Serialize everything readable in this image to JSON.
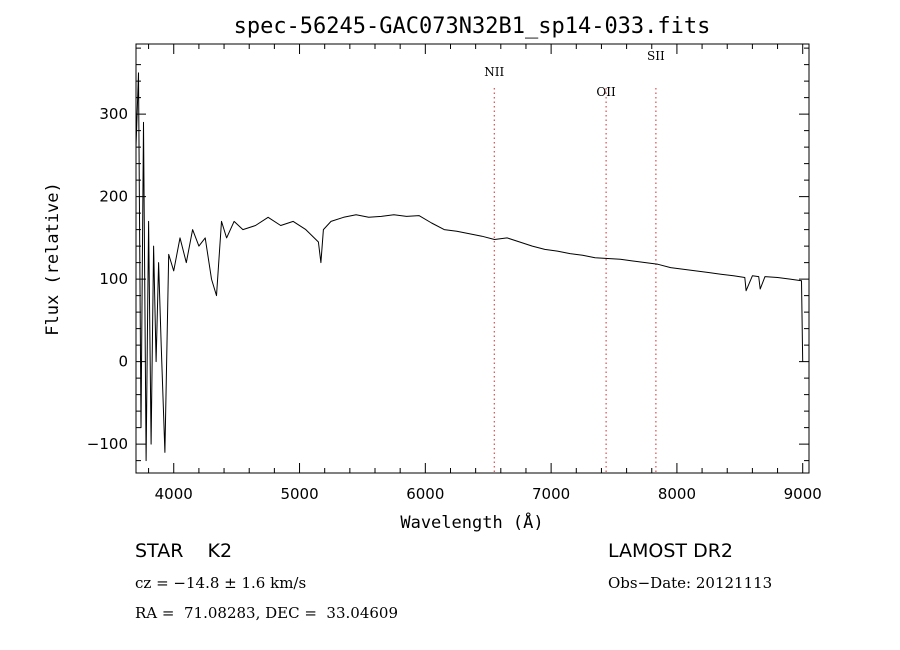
{
  "chart_data": {
    "type": "line",
    "title": "spec-56245-GAC073N32B1_sp14-033.fits",
    "xlabel": "Wavelength (Å)",
    "ylabel": "Flux (relative)",
    "xlim": [
      3700,
      9050
    ],
    "ylim": [
      -135,
      385
    ],
    "x_ticks": [
      4000,
      5000,
      6000,
      7000,
      8000,
      9000
    ],
    "y_ticks": [
      -100,
      0,
      100,
      200,
      300
    ],
    "x_tick_labels": [
      "4000",
      "5000",
      "6000",
      "7000",
      "8000",
      "9000"
    ],
    "y_tick_labels": [
      "−100",
      "0",
      "100",
      "200",
      "300"
    ],
    "grid": false,
    "series": [
      {
        "color": "#000000",
        "x": [
          3700,
          3720,
          3740,
          3760,
          3780,
          3800,
          3820,
          3840,
          3860,
          3880,
          3900,
          3930,
          3960,
          4000,
          4050,
          4100,
          4150,
          4200,
          4250,
          4300,
          4340,
          4380,
          4420,
          4480,
          4550,
          4650,
          4750,
          4850,
          4950,
          5050,
          5150,
          5170,
          5190,
          5250,
          5350,
          5450,
          5550,
          5650,
          5750,
          5850,
          5950,
          6050,
          6150,
          6250,
          6350,
          6450,
          6550,
          6650,
          6750,
          6850,
          6950,
          7050,
          7150,
          7250,
          7350,
          7450,
          7550,
          7650,
          7750,
          7850,
          7950,
          8050,
          8150,
          8250,
          8350,
          8450,
          8540,
          8550,
          8600,
          8650,
          8662,
          8700,
          8800,
          8900,
          8990,
          9000
        ],
        "y": [
          260,
          350,
          -80,
          290,
          -120,
          170,
          -100,
          140,
          0,
          120,
          20,
          -110,
          130,
          110,
          150,
          120,
          160,
          140,
          150,
          100,
          80,
          170,
          150,
          170,
          160,
          165,
          175,
          165,
          170,
          160,
          145,
          120,
          160,
          170,
          175,
          178,
          175,
          176,
          178,
          176,
          177,
          168,
          160,
          158,
          155,
          152,
          148,
          150,
          145,
          140,
          136,
          134,
          131,
          129,
          126,
          125,
          124,
          122,
          120,
          118,
          114,
          112,
          110,
          108,
          106,
          104,
          102,
          86,
          104,
          103,
          88,
          103,
          102,
          100,
          98,
          0
        ]
      }
    ],
    "lines": [
      {
        "label": "NII",
        "x": 6548
      },
      {
        "label": "OII",
        "x": 7437
      },
      {
        "label": "SII",
        "x": 7833
      }
    ]
  },
  "footer": {
    "object_type": "STAR    K2",
    "survey": "LAMOST DR2",
    "cz": "cz = −14.8 ± 1.6 km/s",
    "obs_date": "Obs−Date: 20121113",
    "coords": "RA =  71.08283, DEC =  33.04609"
  }
}
